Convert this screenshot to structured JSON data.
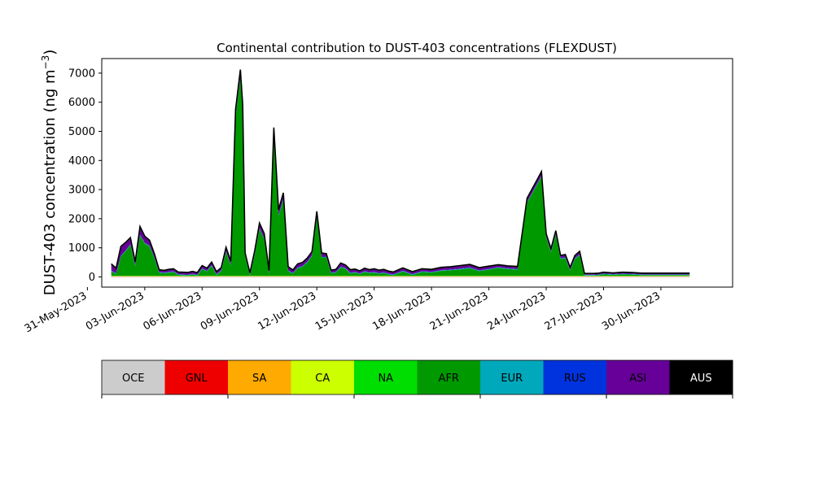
{
  "chart_data": {
    "type": "area",
    "stacked": true,
    "title": "Continental contribution to DUST-403 concentrations (FLEXDUST)",
    "ylabel_main": "DUST-403 concentration (ng m",
    "ylabel_sup": "−3",
    "ylabel_close": ")",
    "xlabel": "",
    "ylim": [
      -350,
      7500
    ],
    "yticks": [
      0,
      1000,
      2000,
      3000,
      4000,
      5000,
      6000,
      7000
    ],
    "xlim": [
      "2023-05-31T18:00",
      "2023-07-03T18:00"
    ],
    "xtick_labels": [
      "31-May-2023",
      "03-Jun-2023",
      "06-Jun-2023",
      "09-Jun-2023",
      "12-Jun-2023",
      "15-Jun-2023",
      "18-Jun-2023",
      "21-Jun-2023",
      "24-Jun-2023",
      "27-Jun-2023",
      "30-Jun-2023"
    ],
    "xtick_dates": [
      "2023-05-31",
      "2023-06-03",
      "2023-06-06",
      "2023-06-09",
      "2023-06-12",
      "2023-06-15",
      "2023-06-18",
      "2023-06-21",
      "2023-06-24",
      "2023-06-27",
      "2023-06-30"
    ],
    "grid": false,
    "x": [
      "2023-06-01T06:00",
      "2023-06-01T12:00",
      "2023-06-01T18:00",
      "2023-06-02T00:00",
      "2023-06-02T06:00",
      "2023-06-02T12:00",
      "2023-06-02T18:00",
      "2023-06-03T00:00",
      "2023-06-03T06:00",
      "2023-06-03T12:00",
      "2023-06-03T18:00",
      "2023-06-04T00:00",
      "2023-06-04T06:00",
      "2023-06-04T12:00",
      "2023-06-04T18:00",
      "2023-06-05T00:00",
      "2023-06-05T06:00",
      "2023-06-05T12:00",
      "2023-06-05T18:00",
      "2023-06-06T00:00",
      "2023-06-06T06:00",
      "2023-06-06T12:00",
      "2023-06-06T18:00",
      "2023-06-07T00:00",
      "2023-06-07T06:00",
      "2023-06-07T12:00",
      "2023-06-07T18:00",
      "2023-06-08T00:00",
      "2023-06-08T03:00",
      "2023-06-08T06:00",
      "2023-06-08T12:00",
      "2023-06-08T18:00",
      "2023-06-09T00:00",
      "2023-06-09T06:00",
      "2023-06-09T12:00",
      "2023-06-09T18:00",
      "2023-06-10T00:00",
      "2023-06-10T06:00",
      "2023-06-10T12:00",
      "2023-06-10T18:00",
      "2023-06-11T00:00",
      "2023-06-11T06:00",
      "2023-06-11T12:00",
      "2023-06-11T18:00",
      "2023-06-12T00:00",
      "2023-06-12T06:00",
      "2023-06-12T12:00",
      "2023-06-12T18:00",
      "2023-06-13T00:00",
      "2023-06-13T06:00",
      "2023-06-13T12:00",
      "2023-06-13T18:00",
      "2023-06-14T00:00",
      "2023-06-14T06:00",
      "2023-06-14T12:00",
      "2023-06-14T18:00",
      "2023-06-15T00:00",
      "2023-06-15T06:00",
      "2023-06-15T12:00",
      "2023-06-15T18:00",
      "2023-06-16T00:00",
      "2023-06-16T12:00",
      "2023-06-17T00:00",
      "2023-06-17T12:00",
      "2023-06-18T00:00",
      "2023-06-18T12:00",
      "2023-06-19T00:00",
      "2023-06-19T12:00",
      "2023-06-20T00:00",
      "2023-06-20T12:00",
      "2023-06-21T00:00",
      "2023-06-21T12:00",
      "2023-06-22T00:00",
      "2023-06-22T12:00",
      "2023-06-23T00:00",
      "2023-06-23T06:00",
      "2023-06-23T12:00",
      "2023-06-23T18:00",
      "2023-06-24T00:00",
      "2023-06-24T06:00",
      "2023-06-24T12:00",
      "2023-06-24T18:00",
      "2023-06-25T00:00",
      "2023-06-25T06:00",
      "2023-06-25T12:00",
      "2023-06-25T18:00",
      "2023-06-26T00:00",
      "2023-06-26T06:00",
      "2023-06-26T12:00",
      "2023-06-26T18:00",
      "2023-06-27T00:00",
      "2023-06-27T12:00",
      "2023-06-28T00:00",
      "2023-06-28T12:00",
      "2023-06-29T00:00",
      "2023-06-29T12:00",
      "2023-06-30T00:00",
      "2023-06-30T12:00",
      "2023-07-01T00:00",
      "2023-07-01T12:00"
    ],
    "series": [
      {
        "name": "OCE",
        "color": "#cccccc",
        "values": [
          8,
          8,
          8,
          8,
          8,
          8,
          8,
          8,
          8,
          8,
          8,
          8,
          8,
          8,
          8,
          8,
          8,
          8,
          8,
          8,
          8,
          8,
          8,
          8,
          8,
          8,
          8,
          8,
          8,
          8,
          8,
          8,
          8,
          8,
          8,
          8,
          8,
          8,
          8,
          8,
          8,
          8,
          8,
          8,
          8,
          8,
          8,
          8,
          8,
          8,
          8,
          8,
          8,
          8,
          8,
          8,
          8,
          8,
          8,
          8,
          8,
          8,
          8,
          8,
          8,
          8,
          8,
          8,
          8,
          8,
          8,
          8,
          8,
          8,
          8,
          8,
          8,
          8,
          8,
          8,
          8,
          8,
          8,
          8,
          8,
          8,
          8,
          8,
          8,
          8,
          8,
          8,
          8,
          8,
          8,
          8,
          8,
          8,
          8,
          8
        ]
      },
      {
        "name": "GNL",
        "color": "#ee0000",
        "values": [
          5,
          5,
          5,
          5,
          5,
          5,
          5,
          5,
          5,
          5,
          5,
          5,
          5,
          5,
          5,
          5,
          5,
          5,
          5,
          5,
          5,
          5,
          5,
          5,
          5,
          5,
          5,
          5,
          5,
          5,
          5,
          5,
          5,
          5,
          5,
          5,
          5,
          5,
          5,
          5,
          5,
          5,
          5,
          5,
          5,
          5,
          5,
          5,
          5,
          5,
          5,
          5,
          5,
          5,
          5,
          5,
          5,
          5,
          5,
          5,
          5,
          5,
          5,
          5,
          5,
          5,
          5,
          5,
          5,
          5,
          5,
          5,
          5,
          5,
          5,
          5,
          5,
          5,
          5,
          5,
          5,
          5,
          5,
          5,
          5,
          5,
          5,
          5,
          5,
          5,
          5,
          5,
          5,
          5,
          5,
          5,
          5,
          5,
          5,
          5
        ]
      },
      {
        "name": "SA",
        "color": "#ffaa00",
        "values": [
          4,
          4,
          4,
          4,
          4,
          4,
          4,
          4,
          4,
          4,
          4,
          4,
          4,
          4,
          4,
          4,
          4,
          4,
          4,
          4,
          4,
          4,
          4,
          4,
          4,
          4,
          4,
          4,
          4,
          4,
          4,
          4,
          4,
          4,
          4,
          4,
          4,
          4,
          4,
          4,
          4,
          4,
          4,
          4,
          4,
          4,
          4,
          4,
          4,
          4,
          4,
          4,
          4,
          4,
          4,
          4,
          4,
          4,
          4,
          4,
          4,
          4,
          4,
          4,
          4,
          4,
          4,
          4,
          4,
          4,
          4,
          4,
          4,
          4,
          4,
          4,
          4,
          4,
          4,
          4,
          4,
          4,
          4,
          4,
          4,
          4,
          4,
          4,
          4,
          4,
          4,
          4,
          4,
          4,
          4,
          4,
          4,
          4,
          4,
          4
        ]
      },
      {
        "name": "CA",
        "color": "#ccff00",
        "values": [
          12,
          12,
          12,
          12,
          12,
          12,
          12,
          12,
          12,
          12,
          12,
          12,
          12,
          12,
          12,
          12,
          12,
          12,
          12,
          12,
          12,
          12,
          12,
          12,
          12,
          12,
          12,
          12,
          12,
          12,
          12,
          12,
          12,
          12,
          12,
          12,
          12,
          12,
          12,
          12,
          12,
          12,
          12,
          12,
          12,
          12,
          12,
          12,
          12,
          12,
          12,
          12,
          12,
          12,
          12,
          12,
          12,
          12,
          12,
          12,
          12,
          12,
          12,
          12,
          12,
          12,
          12,
          12,
          12,
          12,
          12,
          12,
          12,
          12,
          12,
          12,
          12,
          12,
          12,
          12,
          12,
          12,
          12,
          12,
          12,
          12,
          12,
          12,
          12,
          12,
          12,
          12,
          12,
          12,
          12,
          12,
          12,
          12,
          12,
          12
        ]
      },
      {
        "name": "NA",
        "color": "#00dd00",
        "values": [
          10,
          10,
          10,
          10,
          10,
          10,
          10,
          10,
          10,
          10,
          10,
          10,
          10,
          10,
          10,
          10,
          10,
          10,
          10,
          10,
          10,
          10,
          10,
          10,
          10,
          10,
          10,
          10,
          10,
          10,
          10,
          10,
          10,
          10,
          10,
          10,
          10,
          10,
          10,
          10,
          10,
          10,
          10,
          10,
          10,
          10,
          10,
          10,
          10,
          10,
          10,
          10,
          10,
          10,
          10,
          10,
          10,
          10,
          10,
          10,
          10,
          10,
          10,
          10,
          10,
          10,
          10,
          10,
          10,
          10,
          10,
          10,
          10,
          10,
          10,
          10,
          10,
          10,
          10,
          10,
          10,
          10,
          10,
          10,
          10,
          10,
          10,
          10,
          10,
          10,
          10,
          10,
          10,
          10,
          10,
          10,
          10,
          10,
          10,
          10
        ]
      },
      {
        "name": "AFR",
        "color": "#009900",
        "values": [
          161,
          61,
          661,
          851,
          1061,
          331,
          1381,
          1111,
          1011,
          611,
          101,
          86,
          111,
          131,
          31,
          21,
          16,
          41,
          11,
          231,
          151,
          341,
          31,
          161,
          821,
          341,
          5461,
          6811,
          5611,
          661,
          11,
          711,
          1611,
          1261,
          61,
          4861,
          2061,
          2621,
          161,
          71,
          261,
          311,
          461,
          681,
          2011,
          631,
          631,
          81,
          111,
          291,
          241,
          81,
          111,
          61,
          131,
          91,
          111,
          71,
          91,
          51,
          21,
          151,
          31,
          131,
          111,
          171,
          191,
          221,
          261,
          161,
          211,
          271,
          231,
          211,
          2511,
          2811,
          3111,
          3411,
          1311,
          811,
          1411,
          581,
          611,
          181,
          581,
          711,
          11,
          11,
          11,
          21,
          51,
          31,
          51,
          41,
          21,
          21,
          21,
          21,
          21,
          21
        ]
      },
      {
        "name": "EUR",
        "color": "#00a8bb",
        "values": [
          15,
          15,
          15,
          15,
          15,
          15,
          15,
          15,
          15,
          15,
          15,
          15,
          15,
          15,
          15,
          15,
          15,
          15,
          15,
          15,
          15,
          15,
          15,
          15,
          15,
          15,
          15,
          15,
          15,
          15,
          15,
          15,
          15,
          15,
          15,
          15,
          15,
          15,
          15,
          15,
          15,
          15,
          15,
          15,
          15,
          15,
          15,
          15,
          15,
          15,
          15,
          15,
          15,
          15,
          15,
          15,
          15,
          15,
          15,
          15,
          15,
          15,
          15,
          15,
          15,
          15,
          15,
          15,
          15,
          15,
          15,
          15,
          15,
          15,
          15,
          15,
          15,
          15,
          15,
          15,
          15,
          15,
          15,
          15,
          15,
          15,
          15,
          15,
          15,
          15,
          15,
          15,
          15,
          15,
          15,
          15,
          15,
          15,
          15,
          15
        ]
      },
      {
        "name": "RUS",
        "color": "#0033dd",
        "values": [
          10,
          10,
          10,
          10,
          10,
          10,
          10,
          10,
          10,
          10,
          10,
          10,
          10,
          10,
          10,
          10,
          10,
          10,
          10,
          10,
          10,
          10,
          10,
          10,
          10,
          10,
          10,
          10,
          10,
          10,
          10,
          10,
          10,
          10,
          10,
          10,
          10,
          10,
          10,
          10,
          10,
          10,
          10,
          10,
          10,
          10,
          10,
          10,
          10,
          10,
          10,
          10,
          10,
          10,
          10,
          10,
          10,
          10,
          10,
          10,
          10,
          10,
          10,
          10,
          10,
          10,
          10,
          10,
          10,
          10,
          10,
          10,
          10,
          10,
          10,
          10,
          10,
          10,
          10,
          10,
          10,
          10,
          10,
          10,
          10,
          10,
          10,
          10,
          10,
          10,
          10,
          10,
          10,
          10,
          10,
          10,
          10,
          10,
          10,
          10
        ]
      },
      {
        "name": "ASI",
        "color": "#660099",
        "values": [
          200,
          150,
          300,
          250,
          200,
          100,
          260,
          200,
          160,
          100,
          60,
          50,
          60,
          60,
          50,
          50,
          50,
          60,
          50,
          70,
          60,
          80,
          60,
          70,
          110,
          110,
          200,
          220,
          200,
          80,
          40,
          100,
          150,
          140,
          70,
          180,
          160,
          180,
          100,
          80,
          100,
          100,
          100,
          100,
          150,
          100,
          80,
          60,
          60,
          100,
          80,
          80,
          70,
          60,
          80,
          70,
          80,
          70,
          80,
          60,
          60,
          70,
          60,
          60,
          60,
          70,
          70,
          80,
          80,
          70,
          70,
          60,
          60,
          60,
          100,
          110,
          110,
          120,
          80,
          70,
          90,
          70,
          70,
          60,
          70,
          80,
          20,
          20,
          20,
          20,
          20,
          20,
          20,
          20,
          20,
          20,
          20,
          20,
          20,
          20
        ]
      },
      {
        "name": "AUS",
        "color": "#000000",
        "values": [
          25,
          25,
          25,
          25,
          25,
          25,
          25,
          25,
          25,
          25,
          25,
          25,
          25,
          25,
          25,
          25,
          25,
          25,
          25,
          25,
          25,
          25,
          25,
          25,
          25,
          25,
          25,
          25,
          25,
          25,
          25,
          25,
          25,
          25,
          25,
          25,
          25,
          25,
          25,
          25,
          25,
          25,
          25,
          25,
          25,
          25,
          25,
          25,
          25,
          25,
          25,
          25,
          25,
          25,
          25,
          25,
          25,
          25,
          25,
          25,
          25,
          25,
          25,
          25,
          25,
          25,
          25,
          25,
          25,
          25,
          25,
          25,
          25,
          25,
          25,
          25,
          25,
          25,
          25,
          25,
          25,
          25,
          25,
          25,
          25,
          25,
          25,
          25,
          25,
          25,
          25,
          25,
          25,
          25,
          25,
          25,
          25,
          25,
          25,
          25
        ]
      }
    ],
    "legend": {
      "placement": "bottom",
      "style": "colorbar",
      "label_colors": [
        "#000000",
        "#000000",
        "#000000",
        "#000000",
        "#000000",
        "#000000",
        "#000000",
        "#000000",
        "#000000",
        "#ffffff"
      ]
    }
  }
}
